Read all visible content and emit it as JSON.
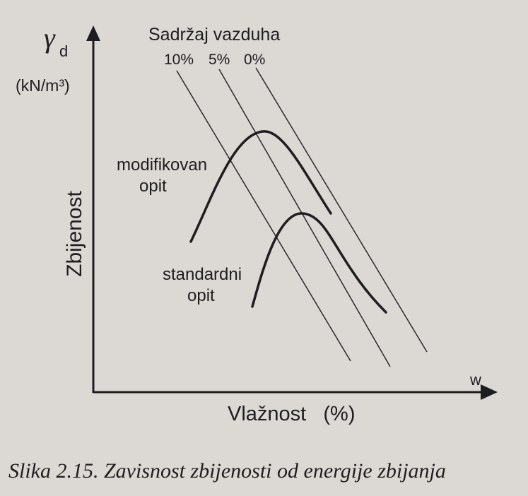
{
  "page": {
    "background": "#dcd8d4",
    "ink": "#1e1d1f"
  },
  "chart_data": {
    "type": "line",
    "y_axis": {
      "symbol": "γ",
      "subscript": "d",
      "unit": "(kN/m³)",
      "name": "Zbijenost"
    },
    "x_axis": {
      "name": "Vlažnost   (%)",
      "end_label": "w"
    },
    "air_content": {
      "title": "Sadržaj vazduha",
      "series": [
        {
          "name": "10%"
        },
        {
          "name": "5%"
        },
        {
          "name": "0%"
        }
      ]
    },
    "curves": [
      {
        "name": "modifikovan opit",
        "label_lines": [
          "modifikovan",
          "opit"
        ]
      },
      {
        "name": "standardni opit",
        "label_lines": [
          "standardni",
          "opit"
        ]
      }
    ],
    "grid": false
  },
  "caption": "Slika 2.15. Zavisnost zbijenosti od energije zbijanja"
}
